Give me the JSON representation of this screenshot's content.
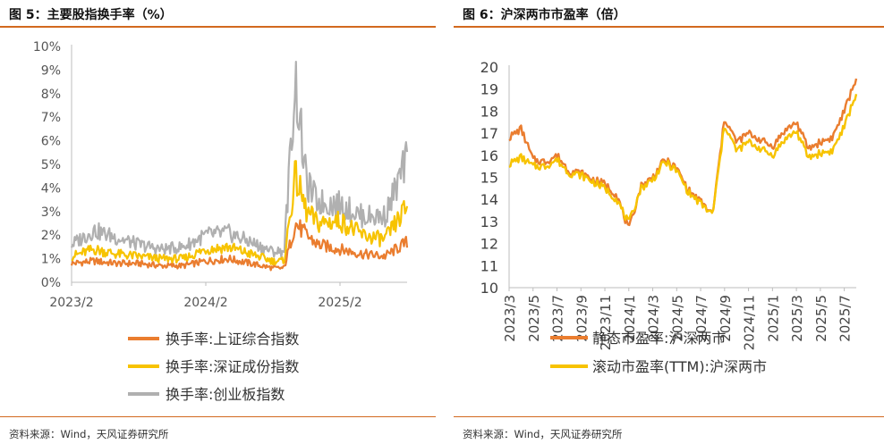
{
  "left_panel": {
    "title": "图 5：主要股指换手率（%）",
    "source": "资料来源：Wind，天风证券研究所"
  },
  "right_panel": {
    "title": "图 6：沪深两市市盈率（倍）",
    "source": "资料来源：Wind，天风证券研究所"
  },
  "colors": {
    "accent": "#d2691e",
    "orange": "#ea7d2f",
    "yellow": "#f7c300",
    "gray": "#b0b0b0"
  },
  "chart_data": [
    {
      "type": "line",
      "title": "换手率",
      "ylim": [
        0,
        10
      ],
      "yticks": [
        "0%",
        "1%",
        "2%",
        "3%",
        "4%",
        "5%",
        "6%",
        "7%",
        "8%",
        "9%",
        "10%"
      ],
      "xticks": [
        "2023/2",
        "2024/2",
        "2025/2"
      ],
      "x_range": [
        "2023/2",
        "2025/8"
      ],
      "legend": "bottom",
      "grid": false,
      "series": [
        {
          "name": "换手率:上证综合指数",
          "color": "#ea7d2f",
          "x": [
            "2023/2",
            "2023/4",
            "2023/6",
            "2023/8",
            "2023/10",
            "2023/12",
            "2024/2",
            "2024/4",
            "2024/6",
            "2024/8",
            "2024/9",
            "2024/10",
            "2024/11",
            "2024/12",
            "2025/2",
            "2025/4",
            "2025/6",
            "2025/8"
          ],
          "y": [
            0.8,
            0.9,
            0.8,
            0.8,
            0.7,
            0.7,
            0.9,
            1.0,
            0.8,
            0.6,
            0.6,
            2.5,
            2.0,
            1.6,
            1.4,
            1.2,
            1.1,
            1.7
          ]
        },
        {
          "name": "换手率:深证成份指数",
          "color": "#f7c300",
          "x": [
            "2023/2",
            "2023/4",
            "2023/6",
            "2023/8",
            "2023/10",
            "2023/12",
            "2024/2",
            "2024/4",
            "2024/6",
            "2024/8",
            "2024/9",
            "2024/10",
            "2024/11",
            "2024/12",
            "2025/2",
            "2025/4",
            "2025/6",
            "2025/8"
          ],
          "y": [
            1.1,
            1.4,
            1.2,
            1.1,
            1.0,
            1.0,
            1.4,
            1.5,
            1.2,
            0.9,
            0.9,
            4.5,
            3.0,
            2.5,
            2.6,
            2.0,
            1.8,
            3.2
          ]
        },
        {
          "name": "换手率:创业板指数",
          "color": "#b0b0b0",
          "x": [
            "2023/2",
            "2023/4",
            "2023/6",
            "2023/8",
            "2023/10",
            "2023/12",
            "2024/2",
            "2024/4",
            "2024/6",
            "2024/8",
            "2024/9",
            "2024/10",
            "2024/11",
            "2024/12",
            "2025/2",
            "2025/4",
            "2025/6",
            "2025/8"
          ],
          "y": [
            1.6,
            2.2,
            1.9,
            1.6,
            1.4,
            1.5,
            2.0,
            2.1,
            1.7,
            1.3,
            1.3,
            8.6,
            4.2,
            3.4,
            3.3,
            2.8,
            2.8,
            5.2
          ]
        }
      ]
    },
    {
      "type": "line",
      "title": "沪深两市市盈率",
      "ylim": [
        10,
        20
      ],
      "yticks": [
        "10",
        "11",
        "12",
        "13",
        "14",
        "15",
        "16",
        "17",
        "18",
        "19",
        "20"
      ],
      "xticks": [
        "2023/3",
        "2023/5",
        "2023/7",
        "2023/9",
        "2023/11",
        "2024/1",
        "2024/3",
        "2024/5",
        "2024/7",
        "2024/9",
        "2024/11",
        "2025/1",
        "2025/3",
        "2025/5",
        "2025/7"
      ],
      "legend": "bottom",
      "grid": false,
      "series": [
        {
          "name": "静态市盈率:沪深两市",
          "color": "#ea7d2f",
          "x": [
            "2023/3",
            "2023/4",
            "2023/5",
            "2023/6",
            "2023/7",
            "2023/8",
            "2023/9",
            "2023/10",
            "2023/11",
            "2023/12",
            "2024/1",
            "2024/2",
            "2024/3",
            "2024/4",
            "2024/5",
            "2024/6",
            "2024/7",
            "2024/8",
            "2024/9",
            "2024/10",
            "2024/11",
            "2024/12",
            "2025/1",
            "2025/2",
            "2025/3",
            "2025/4",
            "2025/5",
            "2025/6",
            "2025/7",
            "2025/8"
          ],
          "y": [
            16.8,
            17.2,
            15.8,
            15.7,
            16.0,
            15.3,
            15.2,
            14.9,
            14.7,
            14.2,
            12.6,
            14.6,
            15.0,
            15.8,
            15.4,
            14.4,
            13.9,
            13.3,
            17.7,
            16.6,
            17.0,
            16.7,
            16.4,
            17.1,
            17.5,
            16.3,
            16.6,
            16.8,
            18.0,
            19.5
          ]
        },
        {
          "name": "滚动市盈率(TTM):沪深两市",
          "color": "#f7c300",
          "x": [
            "2023/3",
            "2023/4",
            "2023/5",
            "2023/6",
            "2023/7",
            "2023/8",
            "2023/9",
            "2023/10",
            "2023/11",
            "2023/12",
            "2024/1",
            "2024/2",
            "2024/3",
            "2024/4",
            "2024/5",
            "2024/6",
            "2024/7",
            "2024/8",
            "2024/9",
            "2024/10",
            "2024/11",
            "2024/12",
            "2025/1",
            "2025/2",
            "2025/3",
            "2025/4",
            "2025/5",
            "2025/6",
            "2025/7",
            "2025/8"
          ],
          "y": [
            15.6,
            15.9,
            15.5,
            15.5,
            15.8,
            15.2,
            15.1,
            14.8,
            14.5,
            14.0,
            12.9,
            14.5,
            14.9,
            15.7,
            15.3,
            14.3,
            13.8,
            13.3,
            17.4,
            16.2,
            16.6,
            16.3,
            16.0,
            16.7,
            17.1,
            15.9,
            16.1,
            16.2,
            17.3,
            18.8
          ]
        }
      ]
    }
  ]
}
